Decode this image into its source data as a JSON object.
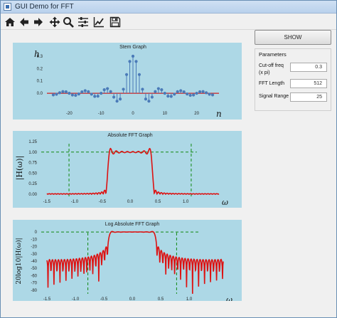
{
  "window": {
    "title": "GUI Demo for FFT"
  },
  "toolbar": {
    "items": [
      {
        "icon": "home-icon"
      },
      {
        "icon": "back-arrow-icon"
      },
      {
        "icon": "forward-arrow-icon"
      },
      {
        "icon": "pan-icon"
      },
      {
        "icon": "zoom-icon"
      },
      {
        "icon": "configure-subplots-icon"
      },
      {
        "icon": "edit-axis-icon"
      },
      {
        "icon": "save-icon"
      }
    ]
  },
  "controls": {
    "show_label": "SHOW",
    "params_title": "Parameters",
    "cutoff_label": "Cut-off freq",
    "cutoff_unit": "(x  pi)",
    "cutoff_value": "0.3",
    "fft_label": "FFT Length",
    "fft_value": "512",
    "range_label": "Signal Range",
    "range_value": "25"
  },
  "chart_data": [
    {
      "type": "stem",
      "title": "Stem Graph",
      "ylabel": "h",
      "xlabel": "n",
      "xlim": [
        -27,
        27
      ],
      "ylim": [
        -0.12,
        0.34
      ],
      "xticks": [
        -20,
        -10,
        0,
        10,
        20
      ],
      "yticks": [
        0.0,
        0.1,
        0.2,
        0.3
      ],
      "cutoff": 0.3,
      "n_range": 25,
      "color": "#4a7ab8",
      "baseline_color": "#d02020"
    },
    {
      "type": "line",
      "title": "Absolute FFT Graph",
      "ylabel": "|H(ω)|",
      "xlabel": "ω",
      "xlim": [
        -1.6,
        1.6
      ],
      "ylim": [
        -0.05,
        1.3
      ],
      "xticks": [
        -1.5,
        -1.0,
        -0.5,
        0.0,
        0.5,
        1.0
      ],
      "yticks": [
        0.0,
        0.25,
        0.5,
        0.75,
        1.0,
        1.25
      ],
      "reference_level": 1.0,
      "cutoff_markers": [
        -1.1,
        1.1
      ],
      "color": "#dd1111",
      "reference_color": "#118811"
    },
    {
      "type": "line",
      "title": "Log Absolute FFT Graph",
      "ylabel": "20log10|H(ω)|",
      "xlabel": "ω",
      "xlim": [
        -1.6,
        1.6
      ],
      "ylim": [
        -85,
        5
      ],
      "xticks": [
        -1.5,
        -1.0,
        -0.5,
        0.0,
        0.5,
        1.0
      ],
      "yticks": [
        0,
        -10,
        -20,
        -30,
        -40,
        -50,
        -60,
        -70,
        -80
      ],
      "reference_level": 0,
      "cutoff_markers": [
        -0.78,
        0.78
      ],
      "color": "#dd1111",
      "reference_color": "#118811"
    }
  ]
}
